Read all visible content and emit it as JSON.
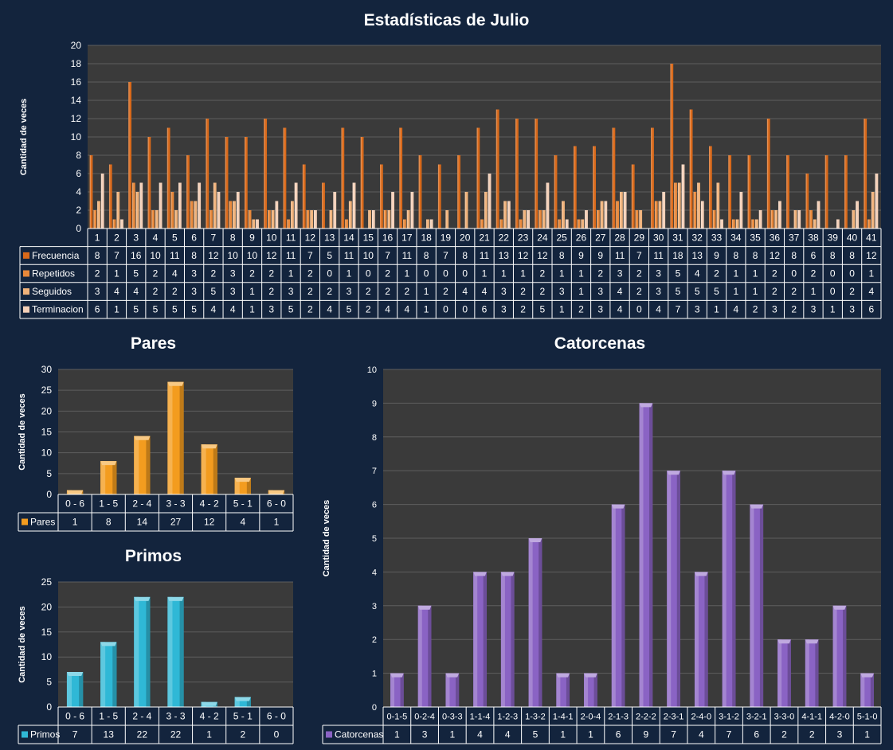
{
  "colors": {
    "background": "#13243d",
    "plot_bg": "#3a3a3a",
    "grid": "#5e5e5e",
    "frecuencia": "#d9691a",
    "repetidos": "#e8883a",
    "seguidos": "#f0b27a",
    "terminacion": "#f4d0b8",
    "pares": "#f39c1f",
    "primos": "#2fb8d6",
    "catorcenas": "#8a63c4"
  },
  "chart_data": [
    {
      "id": "julio",
      "type": "bar",
      "title": "Estadísticas de Julio",
      "ylabel": "Cantidad de veces",
      "ylim": [
        0,
        20
      ],
      "yticks": [
        0,
        2,
        4,
        6,
        8,
        10,
        12,
        14,
        16,
        18,
        20
      ],
      "categories": [
        "1",
        "2",
        "3",
        "4",
        "5",
        "6",
        "7",
        "8",
        "9",
        "10",
        "11",
        "12",
        "13",
        "14",
        "15",
        "16",
        "17",
        "18",
        "19",
        "20",
        "21",
        "22",
        "23",
        "24",
        "25",
        "26",
        "27",
        "28",
        "29",
        "30",
        "31",
        "32",
        "33",
        "34",
        "35",
        "36",
        "37",
        "38",
        "39",
        "40",
        "41"
      ],
      "series": [
        {
          "name": "Frecuencia",
          "values": [
            8,
            7,
            16,
            10,
            11,
            8,
            12,
            10,
            10,
            12,
            11,
            7,
            5,
            11,
            10,
            7,
            11,
            8,
            7,
            8,
            11,
            13,
            12,
            12,
            8,
            9,
            9,
            11,
            7,
            11,
            18,
            13,
            9,
            8,
            8,
            12,
            8,
            6,
            8,
            8,
            12
          ]
        },
        {
          "name": "Repetidos",
          "values": [
            2,
            1,
            5,
            2,
            4,
            3,
            2,
            3,
            2,
            2,
            1,
            2,
            0,
            1,
            0,
            2,
            1,
            0,
            0,
            0,
            1,
            1,
            1,
            2,
            1,
            1,
            2,
            3,
            2,
            3,
            5,
            4,
            2,
            1,
            1,
            2,
            0,
            2,
            0,
            0,
            1
          ]
        },
        {
          "name": "Seguidos",
          "values": [
            3,
            4,
            4,
            2,
            2,
            3,
            5,
            3,
            1,
            2,
            3,
            2,
            2,
            3,
            2,
            2,
            2,
            1,
            2,
            4,
            4,
            3,
            2,
            2,
            3,
            1,
            3,
            4,
            2,
            3,
            5,
            5,
            5,
            1,
            1,
            2,
            2,
            1,
            0,
            2,
            4
          ]
        },
        {
          "name": "Terminacion",
          "values": [
            6,
            1,
            5,
            5,
            5,
            5,
            4,
            4,
            1,
            3,
            5,
            2,
            4,
            5,
            2,
            4,
            4,
            1,
            0,
            0,
            6,
            3,
            2,
            5,
            1,
            2,
            3,
            4,
            0,
            4,
            7,
            3,
            1,
            4,
            2,
            3,
            2,
            3,
            1,
            3,
            6
          ]
        }
      ],
      "grid": true,
      "legend": "data-table"
    },
    {
      "id": "pares",
      "type": "bar",
      "title": "Pares",
      "ylabel": "Cantidad de veces",
      "ylim": [
        0,
        30
      ],
      "yticks": [
        0,
        5,
        10,
        15,
        20,
        25,
        30
      ],
      "categories": [
        "0 - 6",
        "1 - 5",
        "2 - 4",
        "3 - 3",
        "4 - 2",
        "5 - 1",
        "6 - 0"
      ],
      "series": [
        {
          "name": "Pares",
          "values": [
            1,
            8,
            14,
            27,
            12,
            4,
            1
          ]
        }
      ],
      "grid": true,
      "legend": "data-table"
    },
    {
      "id": "primos",
      "type": "bar",
      "title": "Primos",
      "ylabel": "Cantidad de veces",
      "ylim": [
        0,
        25
      ],
      "yticks": [
        0,
        5,
        10,
        15,
        20,
        25
      ],
      "categories": [
        "0 - 6",
        "1 - 5",
        "2 - 4",
        "3 - 3",
        "4 - 2",
        "5 - 1",
        "6 - 0"
      ],
      "series": [
        {
          "name": "Primos",
          "values": [
            7,
            13,
            22,
            22,
            1,
            2,
            0
          ]
        }
      ],
      "grid": true,
      "legend": "data-table"
    },
    {
      "id": "catorcenas",
      "type": "bar",
      "title": "Catorcenas",
      "ylabel": "Cantidad de veces",
      "ylim": [
        0,
        10
      ],
      "yticks": [
        0,
        1,
        2,
        3,
        4,
        5,
        6,
        7,
        8,
        9,
        10
      ],
      "categories": [
        "0-1-5",
        "0-2-4",
        "0-3-3",
        "1-1-4",
        "1-2-3",
        "1-3-2",
        "1-4-1",
        "2-0-4",
        "2-1-3",
        "2-2-2",
        "2-3-1",
        "2-4-0",
        "3-1-2",
        "3-2-1",
        "3-3-0",
        "4-1-1",
        "4-2-0",
        "5-1-0"
      ],
      "series": [
        {
          "name": "Catorcenas",
          "values": [
            1,
            3,
            1,
            4,
            4,
            5,
            1,
            1,
            6,
            9,
            7,
            4,
            7,
            6,
            2,
            2,
            3,
            1
          ]
        }
      ],
      "grid": true,
      "legend": "data-table"
    }
  ]
}
